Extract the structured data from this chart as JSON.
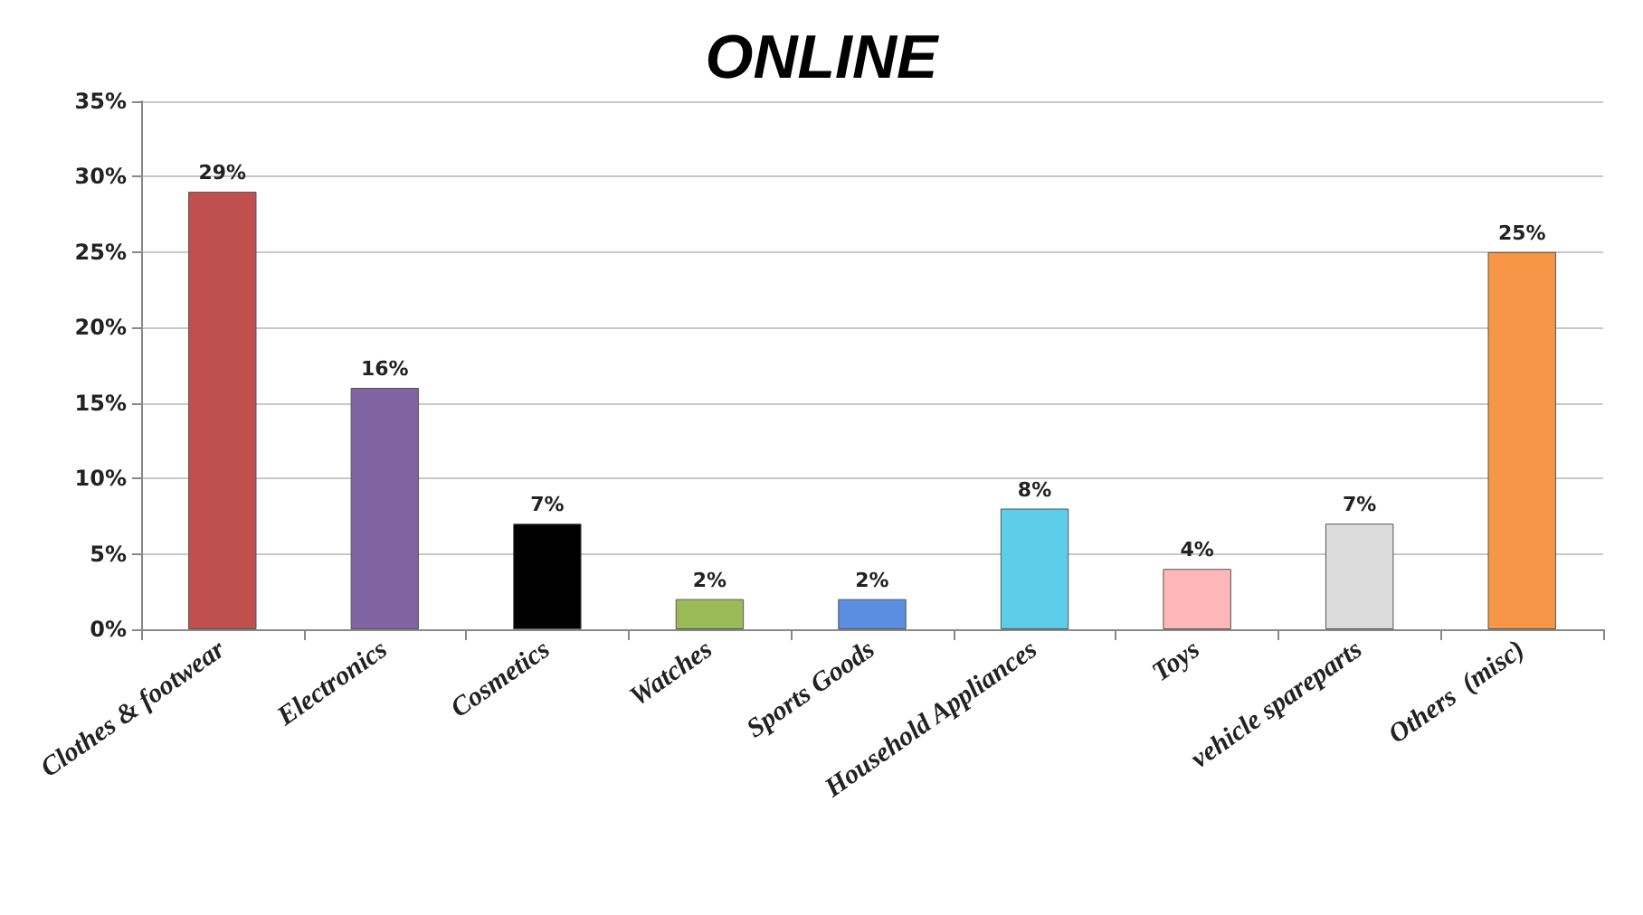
{
  "chart_data": {
    "type": "bar",
    "title": "ONLINE",
    "categories": [
      "Clothes & footwear",
      "Electronics",
      "Cosmetics",
      "Watches",
      "Sports Goods",
      "Household Appliances",
      "Toys",
      "vehicle spareparts",
      "Others  (misc)"
    ],
    "values": [
      29,
      16,
      7,
      2,
      2,
      8,
      4,
      7,
      25
    ],
    "value_labels": [
      "29%",
      "16%",
      "7%",
      "2%",
      "2%",
      "8%",
      "4%",
      "7%",
      "25%"
    ],
    "colors": [
      "#c0504d",
      "#8064a2",
      "#000000",
      "#9bbb59",
      "#5b8ee0",
      "#5ccde8",
      "#ffb8b8",
      "#dcdcdc",
      "#f79646"
    ],
    "ylim": [
      0,
      35
    ],
    "yticks": [
      {
        "value": 0,
        "label": "0%"
      },
      {
        "value": 5,
        "label": "5%"
      },
      {
        "value": 10,
        "label": "10%"
      },
      {
        "value": 15,
        "label": "15%"
      },
      {
        "value": 20,
        "label": "20%"
      },
      {
        "value": 25,
        "label": "25%"
      },
      {
        "value": 30,
        "label": "30%"
      },
      {
        "value": 35,
        "label": "35%"
      }
    ],
    "grid": "y"
  }
}
